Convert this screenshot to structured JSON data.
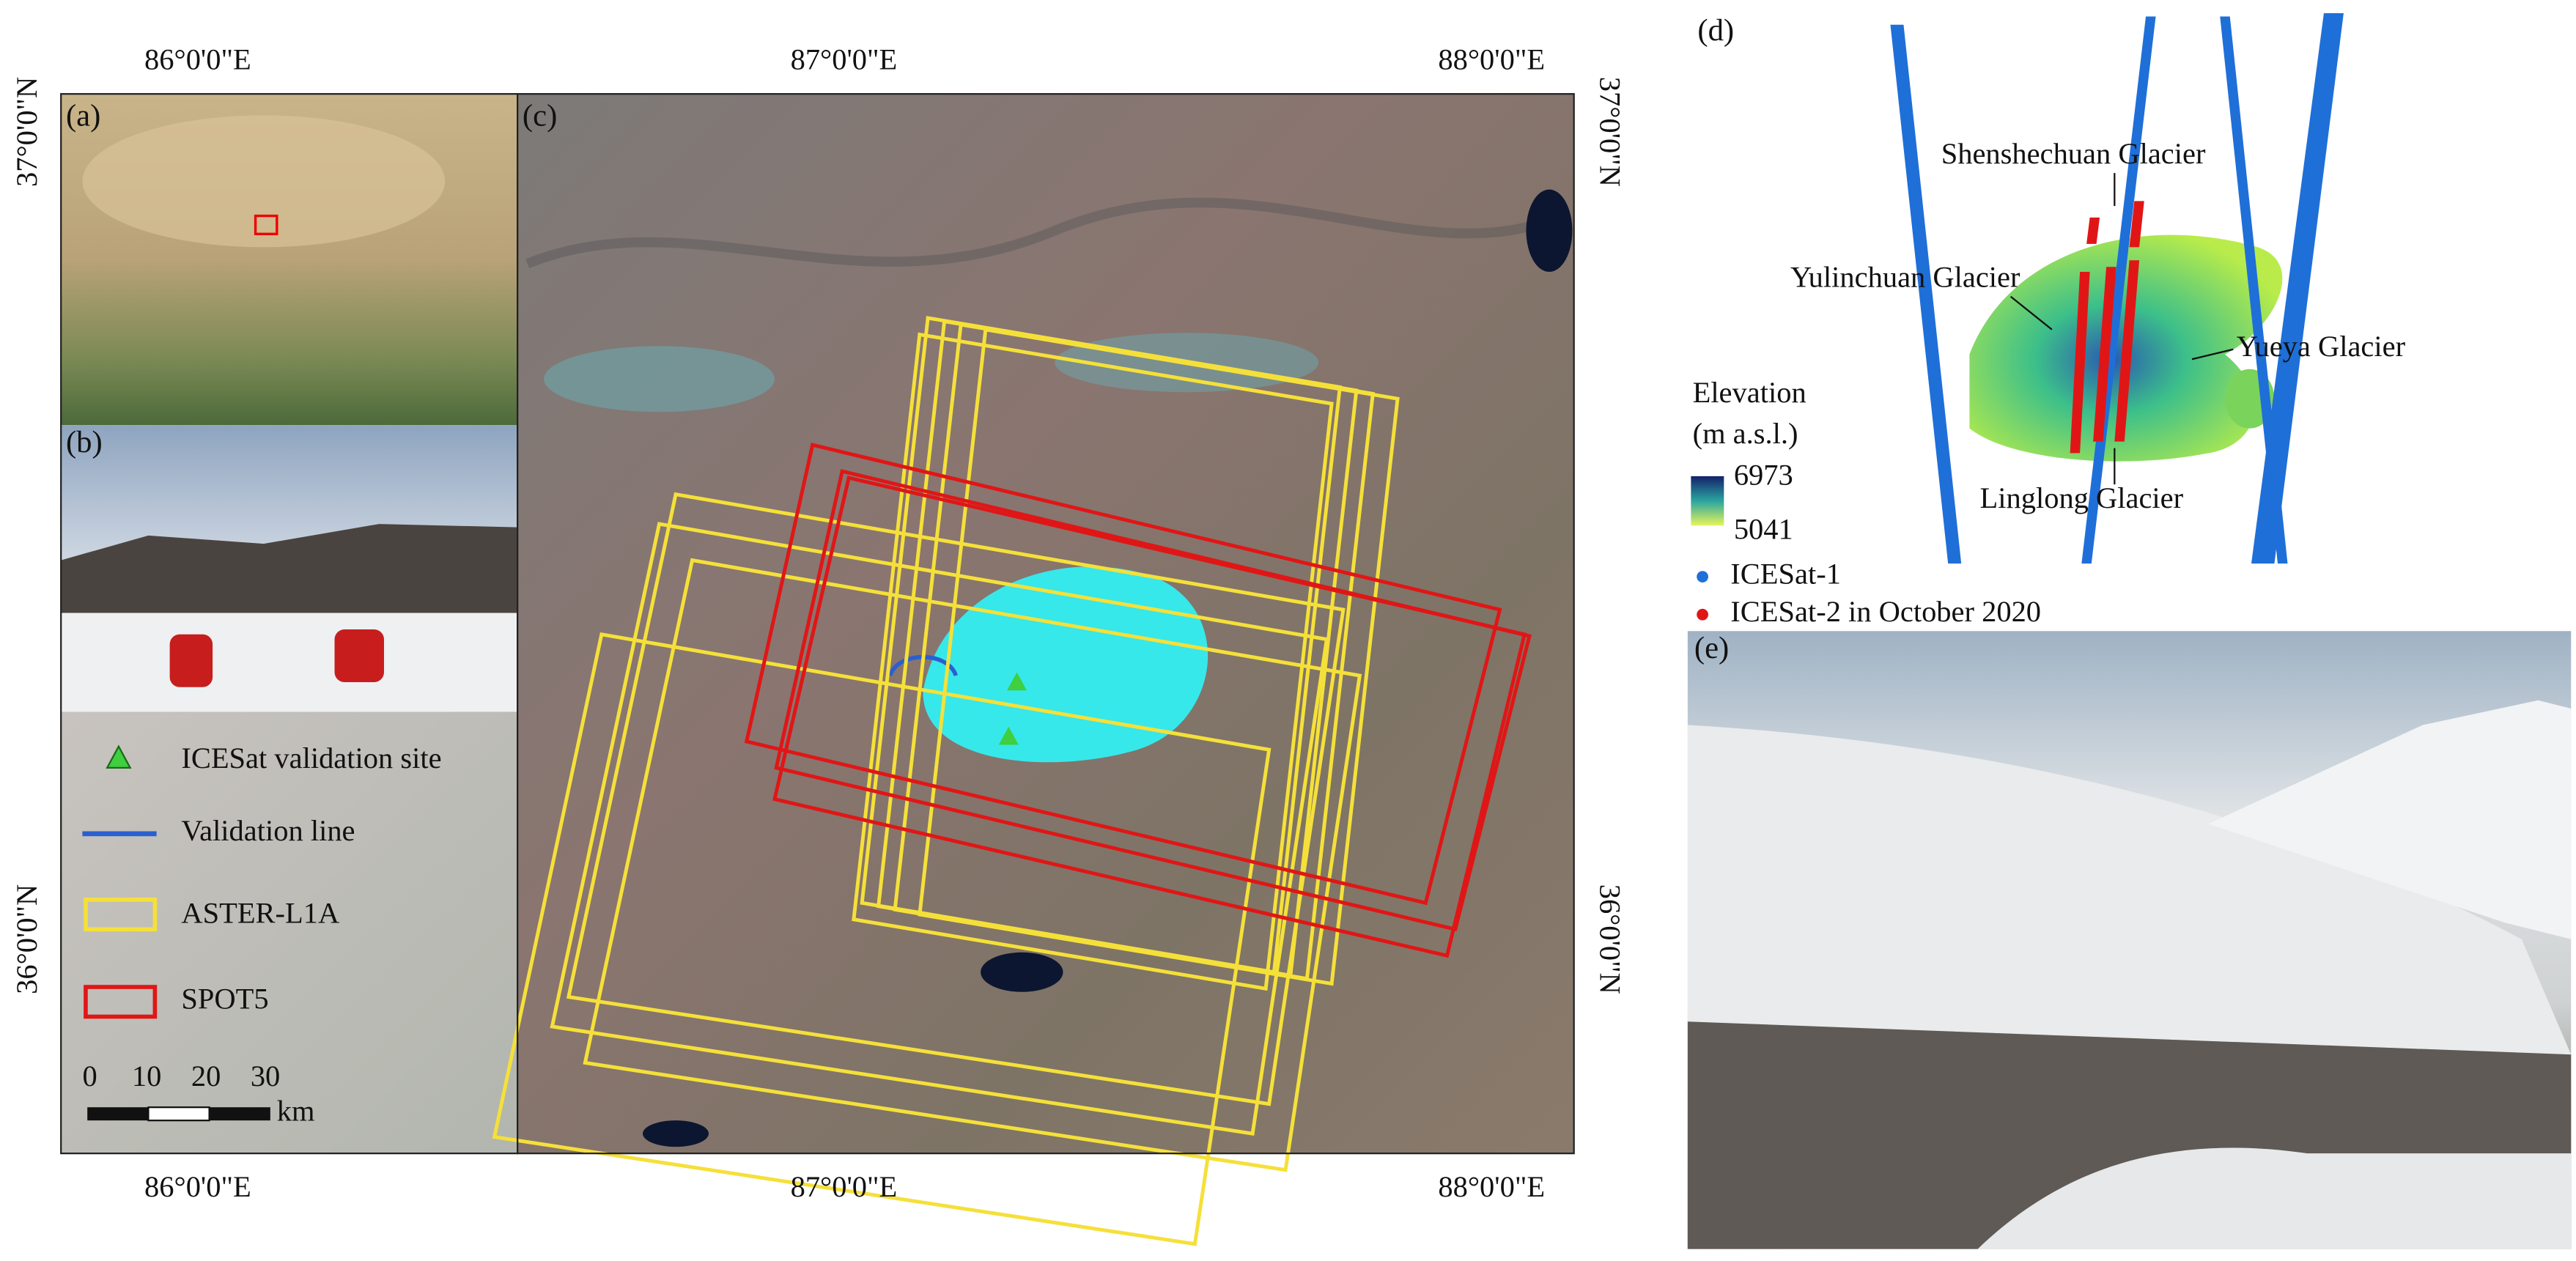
{
  "panels": {
    "a": "(a)",
    "b": "(b)",
    "c": "(c)",
    "d": "(d)",
    "e": "(e)"
  },
  "map_grid": {
    "top_longitudes": [
      "86°0'0\"E",
      "87°0'0\"E",
      "88°0'0\"E"
    ],
    "bottom_longitudes": [
      "86°0'0\"E",
      "87°0'0\"E",
      "88°0'0\"E"
    ],
    "left_latitudes": [
      "37°0'0\"N",
      "36°0'0\"N"
    ],
    "right_latitudes": [
      "37°0'0\"N",
      "36°0'0\"N"
    ]
  },
  "legend": [
    "ICESat validation site",
    "Validation line",
    "ASTER-L1A",
    "SPOT5"
  ],
  "scale_bar": {
    "ticks": [
      "0",
      "10",
      "20",
      "30"
    ],
    "unit": "km"
  },
  "panel_d": {
    "glaciers": [
      "Shenshechuan Glacier",
      "Yulinchuan Glacier",
      "Yueya Glacier",
      "Linglong Glacier"
    ],
    "colorbar": {
      "title": "Elevation",
      "unit": "(m a.s.l.)",
      "max": 6973,
      "min": 5041
    },
    "legend": [
      "ICESat-1",
      "ICESat-2 in October 2020"
    ]
  }
}
